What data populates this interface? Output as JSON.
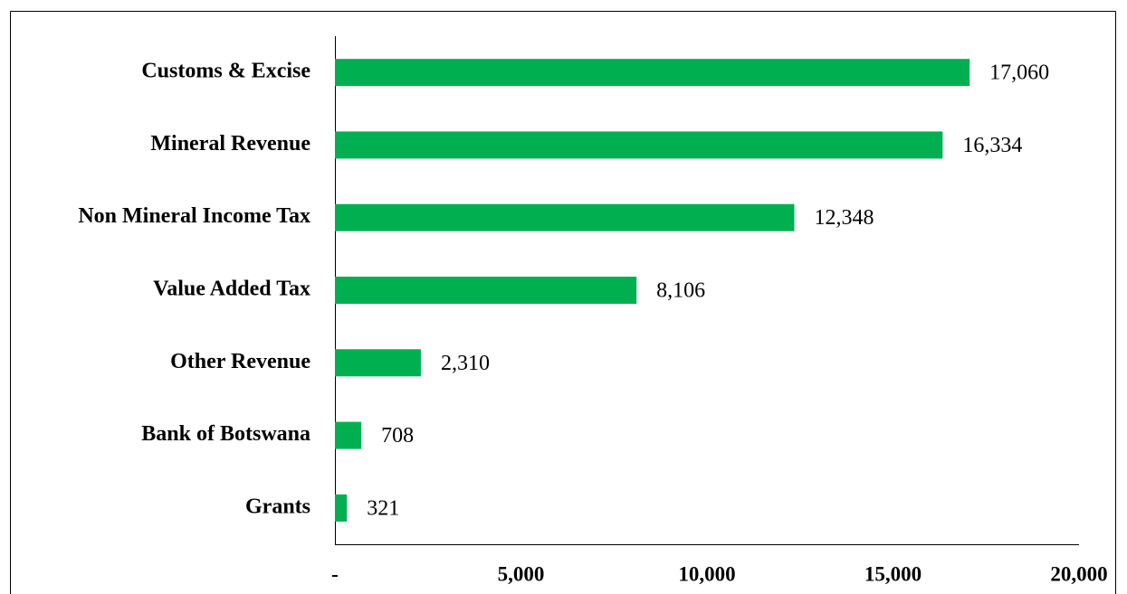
{
  "chart_data": {
    "type": "bar",
    "orientation": "horizontal",
    "categories": [
      "Customs & Excise",
      "Mineral Revenue",
      "Non Mineral Income Tax",
      "Value Added Tax",
      "Other Revenue",
      "Bank of Botswana",
      "Grants"
    ],
    "values": [
      17060,
      16334,
      12348,
      8106,
      2310,
      708,
      321
    ],
    "value_labels": [
      "17,060",
      "16,334",
      "12,348",
      "8,106",
      "2,310",
      "708",
      "321"
    ],
    "color": "#00b050",
    "xlim": [
      0,
      20000
    ],
    "xticks": [
      {
        "value": 0,
        "label": "-"
      },
      {
        "value": 5000,
        "label": "5,000"
      },
      {
        "value": 10000,
        "label": "10,000"
      },
      {
        "value": 15000,
        "label": "15,000"
      },
      {
        "value": 20000,
        "label": "20,000"
      }
    ],
    "grid": false
  }
}
